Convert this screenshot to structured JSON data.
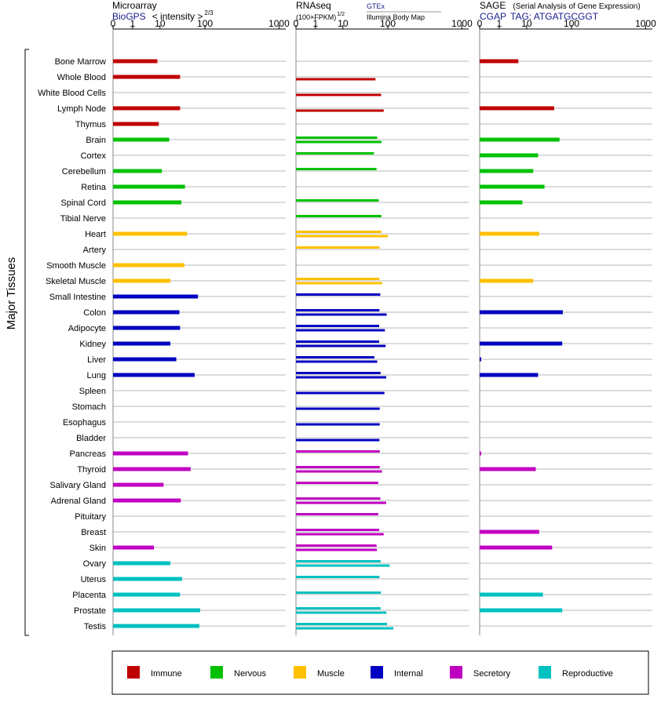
{
  "axis_label": "Major Tissues",
  "tick_labels": [
    "0",
    "1",
    "10",
    "100",
    "1000"
  ],
  "panels": [
    {
      "title": "Microarray",
      "subtitle_link": "BioGPS",
      "subtitle_extra": "< intensity >",
      "subtitle_power": "2/3"
    },
    {
      "title": "RNAseq",
      "subtitle_extra": "(100×FPKM)",
      "subtitle_power": "1/2",
      "source_link": "GTEx",
      "source_extra": "Illumina Body Map"
    },
    {
      "title": "SAGE",
      "title_extra": "(Serial Analysis of Gene Expression)",
      "subtitle_link": "CGAP",
      "subtitle_extra": "TAG: ATGATGCGGT"
    }
  ],
  "legend": [
    {
      "label": "Immune",
      "color": "#c00000"
    },
    {
      "label": "Nervous",
      "color": "#00c000"
    },
    {
      "label": "Muscle",
      "color": "#ffc000"
    },
    {
      "label": "Internal",
      "color": "#0000c0"
    },
    {
      "label": "Secretory",
      "color": "#c000c0"
    },
    {
      "label": "Reproductive",
      "color": "#00c0c0"
    }
  ],
  "chart_data": {
    "type": "bar",
    "orientation": "horizontal",
    "scale": "tick labels 0, 1, 10, 100, 1000 on a compressed (log-like) axis",
    "categories": [
      "Bone Marrow",
      "Whole Blood",
      "White Blood Cells",
      "Lymph Node",
      "Thymus",
      "Brain",
      "Cortex",
      "Cerebellum",
      "Retina",
      "Spinal Cord",
      "Tibial Nerve",
      "Heart",
      "Artery",
      "Smooth Muscle",
      "Skeletal Muscle",
      "Small Intestine",
      "Colon",
      "Adipocyte",
      "Kidney",
      "Liver",
      "Lung",
      "Spleen",
      "Stomach",
      "Esophagus",
      "Bladder",
      "Pancreas",
      "Thyroid",
      "Salivary Gland",
      "Adrenal Gland",
      "Pituitary",
      "Breast",
      "Skin",
      "Ovary",
      "Uterus",
      "Placenta",
      "Prostate",
      "Testis"
    ],
    "groups": [
      "Immune",
      "Immune",
      "Immune",
      "Immune",
      "Immune",
      "Nervous",
      "Nervous",
      "Nervous",
      "Nervous",
      "Nervous",
      "Nervous",
      "Muscle",
      "Muscle",
      "Muscle",
      "Muscle",
      "Internal",
      "Internal",
      "Internal",
      "Internal",
      "Internal",
      "Internal",
      "Internal",
      "Internal",
      "Internal",
      "Internal",
      "Secretory",
      "Secretory",
      "Secretory",
      "Secretory",
      "Secretory",
      "Secretory",
      "Secretory",
      "Reproductive",
      "Reproductive",
      "Reproductive",
      "Reproductive",
      "Reproductive"
    ],
    "series": [
      {
        "name": "Microarray",
        "values": [
          8,
          28,
          null,
          28,
          9,
          16,
          null,
          11,
          36,
          30,
          null,
          40,
          null,
          35,
          17,
          70,
          27,
          28,
          17,
          23,
          59,
          null,
          null,
          null,
          null,
          42,
          48,
          12,
          29,
          null,
          null,
          6,
          17,
          31,
          28,
          78,
          75
        ]
      },
      {
        "name": "GTEx",
        "values": [
          null,
          null,
          null,
          null,
          null,
          58,
          49,
          56,
          null,
          63,
          72,
          72,
          65,
          null,
          65,
          68,
          65,
          64,
          64,
          50,
          69,
          null,
          null,
          null,
          null,
          66,
          66,
          61,
          68,
          61,
          64,
          56,
          69,
          65,
          70,
          69,
          96
        ]
      },
      {
        "name": "Illumina Body Map",
        "values": [
          null,
          53,
          71,
          81,
          null,
          72,
          null,
          null,
          null,
          null,
          null,
          100,
          null,
          null,
          75,
          null,
          94,
          86,
          89,
          58,
          92,
          84,
          66,
          66,
          65,
          null,
          74,
          null,
          92,
          null,
          81,
          57,
          106,
          null,
          null,
          93,
          119
        ]
      },
      {
        "name": "SAGE",
        "values": [
          5,
          null,
          null,
          41,
          null,
          54,
          18,
          14,
          25,
          7,
          null,
          19,
          null,
          null,
          14,
          null,
          64,
          null,
          62,
          0.02,
          18,
          null,
          null,
          null,
          null,
          0.02,
          16,
          null,
          null,
          null,
          19,
          37,
          null,
          null,
          23,
          62,
          null
        ]
      }
    ]
  }
}
